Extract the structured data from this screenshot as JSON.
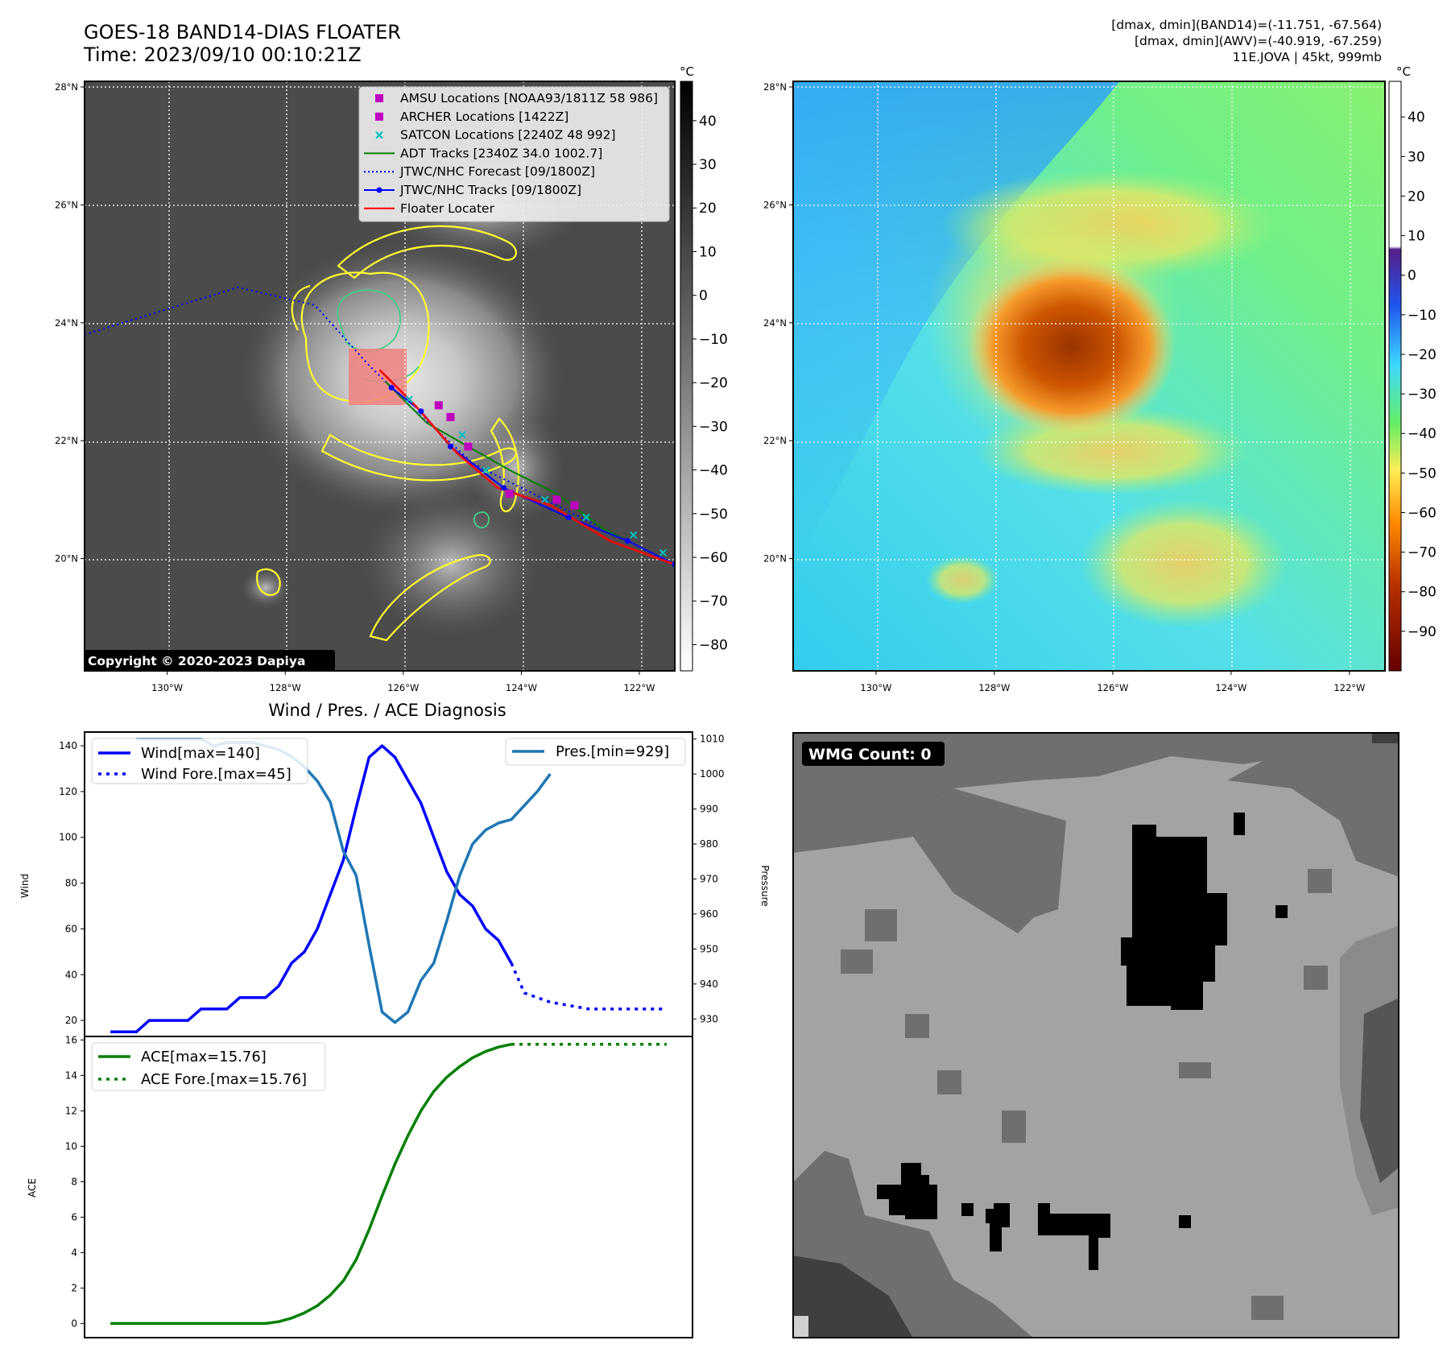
{
  "header": {
    "title_line1": "GOES-18 BAND14-DIAS FLOATER",
    "title_line2": "Time: 2023/09/10 00:10:21Z",
    "info_line1": "[dmax, dmin](BAND14)=(-11.751, -67.564)",
    "info_line2": "[dmax, dmin](AWV)=(-40.919, -67.259)",
    "info_line3": "11E.JOVA | 45kt, 999mb"
  },
  "colors": {
    "wind": "#0000ff",
    "pressure": "#1f77b4",
    "ace": "#008000",
    "floater": "#ff0000",
    "adt": "#008000",
    "amsu": "#bf00bf",
    "satcon": "#00bfbf",
    "contour_yellow": "#ffff33",
    "contour_green": "#44cc88"
  },
  "map_axes": {
    "lat_labels": [
      "28°N",
      "26°N",
      "24°N",
      "22°N",
      "20°N"
    ],
    "lon_labels": [
      "130°W",
      "128°W",
      "126°W",
      "124°W",
      "122°W"
    ],
    "lat_values": [
      28,
      26,
      24,
      22,
      20
    ],
    "lon_values": [
      -130,
      -128,
      -126,
      -124,
      -122
    ],
    "lat_range": [
      18,
      28
    ],
    "lon_range": [
      -131.4,
      -121.4
    ],
    "grid": "dotted white"
  },
  "ir_panel": {
    "copyright": "Copyright © 2020-2023 Dapiya",
    "colorbar_unit": "°C",
    "colorbar_ticks": [
      "40",
      "30",
      "20",
      "10",
      "0",
      "−10",
      "−20",
      "−30",
      "−40",
      "−50",
      "−60",
      "−70",
      "−80"
    ],
    "colorbar_values": [
      40,
      30,
      20,
      10,
      0,
      -10,
      -20,
      -30,
      -40,
      -50,
      -60,
      -70,
      -80
    ],
    "colorbar_range": [
      -86,
      49
    ],
    "legend": [
      {
        "label": "AMSU Locations [NOAA93/1811Z 58 986]",
        "style": "square",
        "color": "#bf00bf"
      },
      {
        "label": "ARCHER Locations [1422Z]",
        "style": "square",
        "color": "#bf00bf"
      },
      {
        "label": "SATCON Locations [2240Z 48 992]",
        "style": "x",
        "color": "#00bfbf"
      },
      {
        "label": "ADT Tracks [2340Z 34.0 1002.7]",
        "style": "line",
        "color": "#008000"
      },
      {
        "label": "JTWC/NHC Forecast [09/1800Z]",
        "style": "dotted",
        "color": "#0000ff"
      },
      {
        "label": "JTWC/NHC Tracks [09/1800Z]",
        "style": "line-dot",
        "color": "#0000ff"
      },
      {
        "label": "Floater Locater",
        "style": "line",
        "color": "#ff0000"
      }
    ],
    "forecast_track": [
      [
        -131.4,
        23.8
      ],
      [
        -128.8,
        24.6
      ],
      [
        -127.5,
        24.3
      ],
      [
        -126.6,
        23.3
      ],
      [
        -125.9,
        22.6
      ],
      [
        -124.8,
        21.6
      ],
      [
        -123.2,
        20.8
      ],
      [
        -121.4,
        19.9
      ]
    ],
    "best_track": [
      [
        -126.2,
        22.9
      ],
      [
        -125.7,
        22.5
      ],
      [
        -125.2,
        21.9
      ],
      [
        -124.3,
        21.2
      ],
      [
        -123.2,
        20.7
      ],
      [
        -122.2,
        20.3
      ],
      [
        -121.4,
        19.9
      ]
    ],
    "adt_track": [
      [
        -126.3,
        23.0
      ],
      [
        -125.6,
        22.3
      ],
      [
        -124.9,
        21.9
      ],
      [
        -124.2,
        21.5
      ],
      [
        -123.4,
        21.1
      ],
      [
        -122.6,
        20.5
      ],
      [
        -121.4,
        19.9
      ]
    ],
    "floater_track": [
      [
        -126.4,
        23.2
      ],
      [
        -125.8,
        22.6
      ],
      [
        -125.1,
        21.8
      ],
      [
        -124.4,
        21.2
      ],
      [
        -123.5,
        20.9
      ],
      [
        -122.5,
        20.3
      ],
      [
        -121.4,
        19.9
      ]
    ],
    "amsu_points": [
      [
        -125.4,
        22.6
      ],
      [
        -125.2,
        22.4
      ],
      [
        -124.9,
        21.9
      ],
      [
        -124.2,
        21.1
      ],
      [
        -123.4,
        21.0
      ],
      [
        -123.1,
        20.9
      ]
    ],
    "satcon_points": [
      [
        -125.9,
        22.7
      ],
      [
        -125.0,
        22.1
      ],
      [
        -124.6,
        21.5
      ],
      [
        -123.6,
        21.0
      ],
      [
        -122.9,
        20.7
      ],
      [
        -122.1,
        20.4
      ],
      [
        -121.6,
        20.1
      ]
    ]
  },
  "wv_panel": {
    "colorbar_unit": "°C",
    "colorbar_ticks": [
      "40",
      "30",
      "20",
      "10",
      "0",
      "−10",
      "−20",
      "−30",
      "−40",
      "−50",
      "−60",
      "−70",
      "−80",
      "−90"
    ],
    "colorbar_values": [
      40,
      30,
      20,
      10,
      0,
      -10,
      -20,
      -30,
      -40,
      -50,
      -60,
      -70,
      -80,
      -90
    ],
    "colorbar_range": [
      -100,
      49
    ]
  },
  "diag_panel": {
    "title": "Wind / Pres. / ACE Diagnosis",
    "wind_axis_label": "Wind",
    "pressure_axis_label": "Pressure",
    "ace_axis_label": "ACE",
    "legend_wind": "Wind[max=140]",
    "legend_wind_fore": "Wind Fore.[max=45]",
    "legend_pres": "Pres.[min=929]",
    "legend_ace": "ACE[max=15.76]",
    "legend_ace_fore": "ACE Fore.[max=15.76]"
  },
  "wmg_panel": {
    "label": "WMG Count: 0"
  },
  "chart_data": [
    {
      "type": "line",
      "title": "Wind / Pres. / ACE Diagnosis",
      "ylabel": "Wind",
      "ylim": [
        13,
        146
      ],
      "yticks": [
        20,
        40,
        60,
        80,
        100,
        120,
        140
      ],
      "x": [
        0,
        1,
        2,
        3,
        4,
        5,
        6,
        7,
        8,
        9,
        10,
        11,
        12,
        13,
        14,
        15,
        16,
        17,
        18,
        19,
        20,
        21,
        22,
        23,
        24,
        25,
        26,
        27,
        28,
        29,
        30,
        31,
        32,
        33,
        34
      ],
      "series": [
        {
          "name": "Wind[max=140]",
          "x": [
            0,
            1,
            2,
            3,
            4,
            5,
            6,
            7,
            8,
            9,
            10,
            11,
            12,
            13,
            14,
            15,
            16,
            17,
            18,
            19,
            20,
            21,
            22,
            23,
            24,
            25,
            26,
            27,
            28,
            29,
            30,
            31
          ],
          "values": [
            15,
            15,
            15,
            20,
            20,
            20,
            20,
            25,
            25,
            25,
            30,
            30,
            30,
            35,
            45,
            50,
            60,
            75,
            90,
            113,
            135,
            140,
            135,
            125,
            115,
            100,
            85,
            75,
            70,
            60,
            55,
            45
          ]
        },
        {
          "name": "Wind Fore.[max=45]",
          "x": [
            31,
            32,
            33,
            34,
            35,
            36,
            37,
            38,
            39,
            40,
            41,
            42,
            43
          ],
          "values": [
            45,
            32,
            30,
            28,
            27,
            26,
            25,
            25,
            25,
            25,
            25,
            25,
            25
          ]
        },
        {
          "name": "Pres.[min=929]",
          "axis": "right",
          "ylim": [
            925,
            1012
          ],
          "yticks": [
            930,
            940,
            950,
            960,
            970,
            980,
            990,
            1000,
            1010
          ],
          "x": [
            2,
            3,
            4,
            5,
            6,
            7,
            8,
            9,
            10,
            11,
            12,
            13,
            14,
            15,
            16,
            17,
            18,
            19,
            20,
            21,
            22,
            23,
            24,
            25,
            26,
            27,
            28,
            29,
            30,
            31,
            32,
            33,
            34
          ],
          "values": [
            1010,
            1010,
            1010,
            1010,
            1010,
            1010,
            1008,
            1009,
            1009,
            1009,
            1008,
            1007,
            1005,
            1002,
            998,
            992,
            978,
            971,
            951,
            932,
            929,
            932,
            941,
            946,
            958,
            971,
            980,
            984,
            986,
            987,
            991,
            995,
            1000
          ]
        }
      ]
    },
    {
      "type": "line",
      "ylabel": "ACE",
      "ylim": [
        -0.8,
        16.2
      ],
      "yticks": [
        0,
        2,
        4,
        6,
        8,
        10,
        12,
        14,
        16
      ],
      "series": [
        {
          "name": "ACE[max=15.76]",
          "x": [
            0,
            1,
            2,
            3,
            4,
            5,
            6,
            7,
            8,
            9,
            10,
            11,
            12,
            13,
            14,
            15,
            16,
            17,
            18,
            19,
            20,
            21,
            22,
            23,
            24,
            25,
            26,
            27,
            28,
            29,
            30,
            31
          ],
          "values": [
            0,
            0,
            0,
            0,
            0,
            0,
            0,
            0,
            0,
            0,
            0,
            0,
            0,
            0.1,
            0.3,
            0.6,
            1.0,
            1.6,
            2.4,
            3.6,
            5.3,
            7.2,
            9.0,
            10.6,
            12.0,
            13.1,
            13.9,
            14.5,
            15.0,
            15.35,
            15.6,
            15.76
          ]
        },
        {
          "name": "ACE Fore.[max=15.76]",
          "x": [
            31,
            35,
            39,
            43
          ],
          "values": [
            15.76,
            15.76,
            15.76,
            15.76
          ]
        }
      ]
    }
  ]
}
